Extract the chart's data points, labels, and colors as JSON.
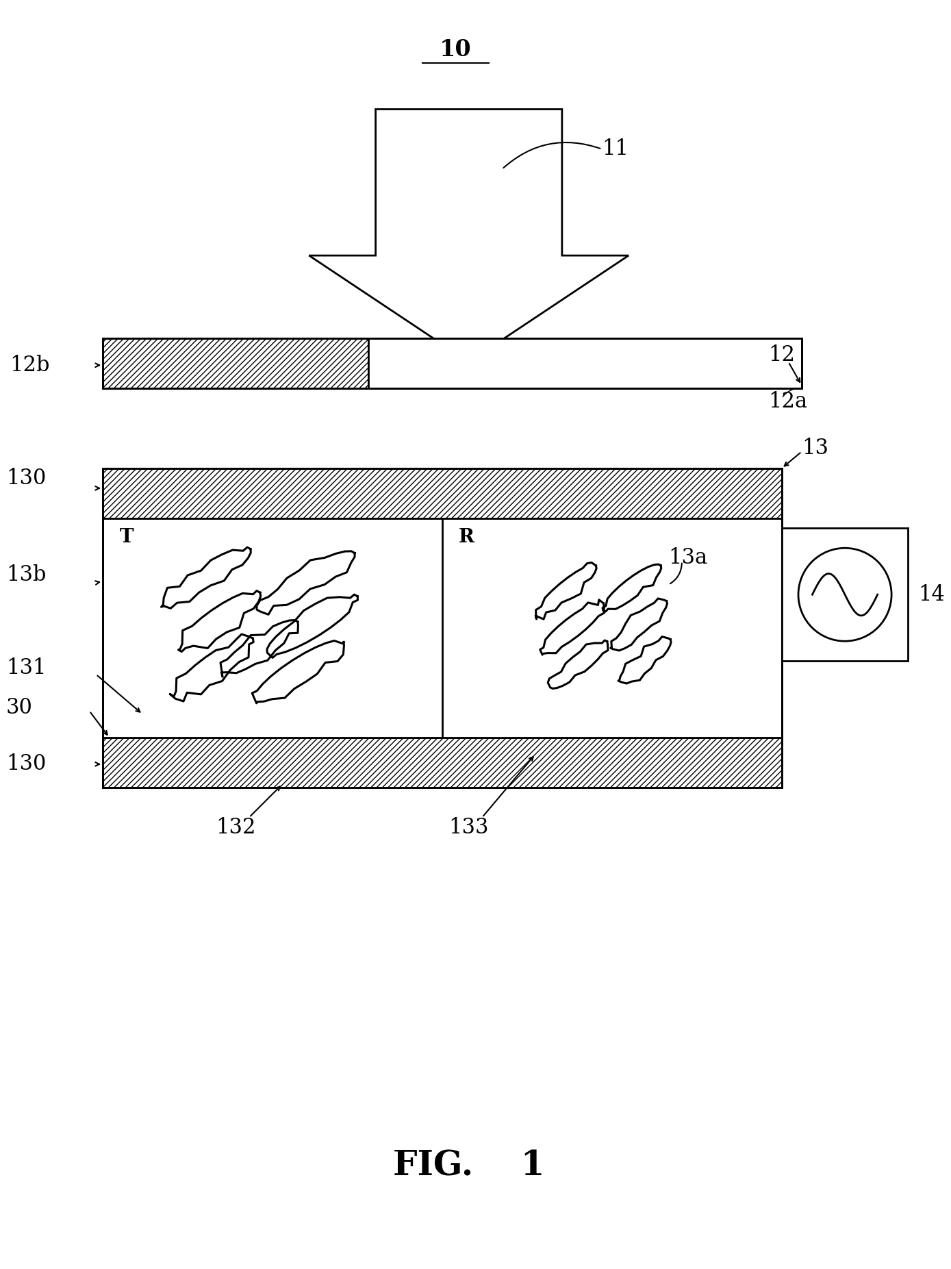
{
  "title": "FIG.    1",
  "label_10": "10",
  "label_11": "11",
  "label_12": "12",
  "label_12a": "12a",
  "label_12b": "12b",
  "label_13": "13",
  "label_13a": "13a",
  "label_13b": "13b",
  "label_130": "130",
  "label_131": "131",
  "label_132": "132",
  "label_133": "133",
  "label_14": "14",
  "label_30": "30",
  "label_T": "T",
  "label_R": "R",
  "bg_color": "#ffffff",
  "line_color": "#000000",
  "fig_width": 13.89,
  "fig_height": 18.53
}
